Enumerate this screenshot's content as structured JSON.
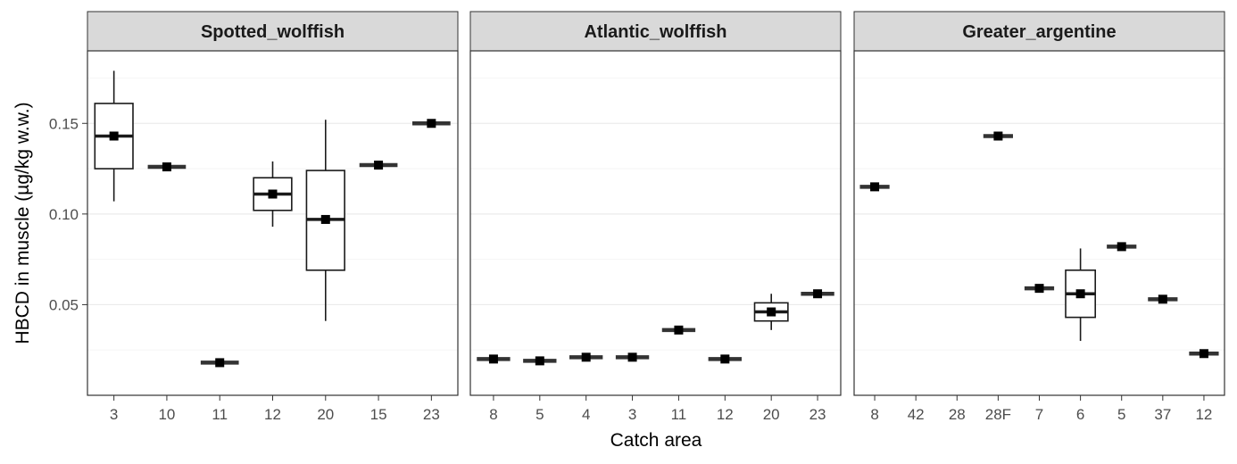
{
  "chart_data": {
    "type": "box",
    "xlabel": "Catch area",
    "ylabel": "HBCD in muscle (µg/kg w.w.)",
    "ylim": [
      0.0,
      0.19
    ],
    "yticks": [
      0.05,
      0.1,
      0.15
    ],
    "ytick_labels": [
      "0.05",
      "0.10",
      "0.15"
    ],
    "grid": true,
    "facets": [
      {
        "title": "Spotted_wolffish",
        "categories": [
          "3",
          "10",
          "11",
          "12",
          "20",
          "15",
          "23"
        ],
        "boxes": [
          {
            "min": 0.107,
            "q1": 0.125,
            "median": 0.143,
            "q3": 0.161,
            "max": 0.179,
            "mean": 0.143
          },
          {
            "min": 0.126,
            "q1": 0.126,
            "median": 0.126,
            "q3": 0.126,
            "max": 0.126,
            "mean": 0.126
          },
          {
            "min": 0.018,
            "q1": 0.018,
            "median": 0.018,
            "q3": 0.018,
            "max": 0.018,
            "mean": 0.018
          },
          {
            "min": 0.093,
            "q1": 0.102,
            "median": 0.111,
            "q3": 0.12,
            "max": 0.129,
            "mean": 0.111
          },
          {
            "min": 0.041,
            "q1": 0.069,
            "median": 0.097,
            "q3": 0.124,
            "max": 0.152,
            "mean": 0.097
          },
          {
            "min": 0.127,
            "q1": 0.127,
            "median": 0.127,
            "q3": 0.127,
            "max": 0.127,
            "mean": 0.127
          },
          {
            "min": 0.15,
            "q1": 0.15,
            "median": 0.15,
            "q3": 0.15,
            "max": 0.15,
            "mean": 0.15
          }
        ]
      },
      {
        "title": "Atlantic_wolffish",
        "categories": [
          "8",
          "5",
          "4",
          "3",
          "11",
          "12",
          "20",
          "23"
        ],
        "boxes": [
          {
            "min": 0.02,
            "q1": 0.02,
            "median": 0.02,
            "q3": 0.02,
            "max": 0.02,
            "mean": 0.02
          },
          {
            "min": 0.019,
            "q1": 0.019,
            "median": 0.019,
            "q3": 0.019,
            "max": 0.019,
            "mean": 0.019
          },
          {
            "min": 0.021,
            "q1": 0.021,
            "median": 0.021,
            "q3": 0.021,
            "max": 0.021,
            "mean": 0.021
          },
          {
            "min": 0.021,
            "q1": 0.021,
            "median": 0.021,
            "q3": 0.021,
            "max": 0.021,
            "mean": 0.021
          },
          {
            "min": 0.036,
            "q1": 0.036,
            "median": 0.036,
            "q3": 0.036,
            "max": 0.036,
            "mean": 0.036
          },
          {
            "min": 0.02,
            "q1": 0.02,
            "median": 0.02,
            "q3": 0.02,
            "max": 0.02,
            "mean": 0.02
          },
          {
            "min": 0.036,
            "q1": 0.041,
            "median": 0.046,
            "q3": 0.051,
            "max": 0.056,
            "mean": 0.046
          },
          {
            "min": 0.056,
            "q1": 0.056,
            "median": 0.056,
            "q3": 0.056,
            "max": 0.056,
            "mean": 0.056
          }
        ]
      },
      {
        "title": "Greater_argentine",
        "categories": [
          "8",
          "42",
          "28",
          "28F",
          "7",
          "6",
          "5",
          "37",
          "12"
        ],
        "boxes": [
          {
            "min": 0.115,
            "q1": 0.115,
            "median": 0.115,
            "q3": 0.115,
            "max": 0.115,
            "mean": 0.115
          },
          null,
          null,
          {
            "min": 0.143,
            "q1": 0.143,
            "median": 0.143,
            "q3": 0.143,
            "max": 0.143,
            "mean": 0.143
          },
          {
            "min": 0.059,
            "q1": 0.059,
            "median": 0.059,
            "q3": 0.059,
            "max": 0.059,
            "mean": 0.059
          },
          {
            "min": 0.03,
            "q1": 0.043,
            "median": 0.056,
            "q3": 0.069,
            "max": 0.081,
            "mean": 0.056
          },
          {
            "min": 0.082,
            "q1": 0.082,
            "median": 0.082,
            "q3": 0.082,
            "max": 0.082,
            "mean": 0.082
          },
          {
            "min": 0.053,
            "q1": 0.053,
            "median": 0.053,
            "q3": 0.053,
            "max": 0.053,
            "mean": 0.053
          },
          {
            "min": 0.023,
            "q1": 0.023,
            "median": 0.023,
            "q3": 0.023,
            "max": 0.023,
            "mean": 0.023
          }
        ]
      }
    ]
  },
  "colors": {
    "panel_border": "#333333",
    "strip_fill": "#d9d9d9",
    "grid_major": "#ebebeb",
    "grid_minor": "#f3f3f3",
    "box_line": "#1a1a1a",
    "mean_marker": "#000000",
    "tick_text": "#4d4d4d"
  }
}
